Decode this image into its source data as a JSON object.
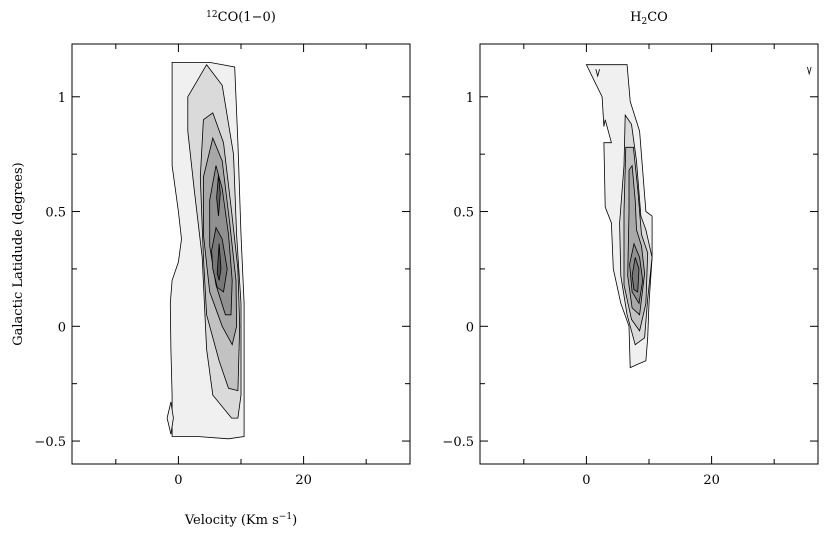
{
  "chart_data": [
    {
      "type": "contour",
      "title": "12CO(1−0)",
      "title_sup": "12",
      "title_main": "CO(1−0)",
      "xlabel_main": "Velocity (Km s",
      "xlabel_sup": "−1",
      "xlabel_close": ")",
      "ylabel": "Galactic Latidude (degrees)",
      "xlim": [
        -17,
        37
      ],
      "ylim": [
        -0.6,
        1.23
      ],
      "xticks": [
        0,
        20
      ],
      "xtick_labels": [
        "0",
        "20"
      ],
      "yticks": [
        -0.5,
        0,
        0.5,
        1
      ],
      "ytick_labels": [
        "−0.5",
        "0",
        "0.5",
        "1"
      ],
      "levels": [
        {
          "fill": "#f0f0f0",
          "points": [
            [
              -1,
              1.15
            ],
            [
              5,
              1.15
            ],
            [
              9,
              1.13
            ],
            [
              9.5,
              0.8
            ],
            [
              10,
              0.4
            ],
            [
              10.5,
              0.1
            ],
            [
              10.5,
              -0.2
            ],
            [
              10.5,
              -0.48
            ],
            [
              8,
              -0.49
            ],
            [
              3,
              -0.48
            ],
            [
              -1,
              -0.48
            ],
            [
              -1,
              -0.3
            ],
            [
              -1.2,
              -0.1
            ],
            [
              -1.3,
              0.1
            ],
            [
              -1,
              0.2
            ],
            [
              0,
              0.28
            ],
            [
              0.5,
              0.38
            ],
            [
              0,
              0.5
            ],
            [
              -1,
              0.7
            ],
            [
              -1,
              1.15
            ]
          ]
        },
        {
          "fill": "#f0f0f0",
          "points": [
            [
              -1.2,
              -0.33
            ],
            [
              -1.8,
              -0.4
            ],
            [
              -1.2,
              -0.47
            ],
            [
              -0.8,
              -0.4
            ]
          ]
        },
        {
          "fill": "#dadada",
          "points": [
            [
              1.5,
              1.0
            ],
            [
              4.5,
              1.14
            ],
            [
              7,
              1.05
            ],
            [
              8.8,
              0.75
            ],
            [
              9.3,
              0.4
            ],
            [
              10,
              0.1
            ],
            [
              10,
              -0.3
            ],
            [
              9.5,
              -0.4
            ],
            [
              8.5,
              -0.4
            ],
            [
              5.5,
              -0.3
            ],
            [
              4.5,
              -0.1
            ],
            [
              3.8,
              0.3
            ],
            [
              2.5,
              0.6
            ],
            [
              1.5,
              0.85
            ]
          ]
        },
        {
          "fill": "#c2c2c2",
          "points": [
            [
              4,
              0.9
            ],
            [
              5.5,
              0.93
            ],
            [
              7.2,
              0.8
            ],
            [
              8.5,
              0.5
            ],
            [
              9.5,
              0.25
            ],
            [
              9.8,
              0
            ],
            [
              9.5,
              -0.28
            ],
            [
              8,
              -0.27
            ],
            [
              6.5,
              -0.15
            ],
            [
              4.5,
              0.05
            ],
            [
              4,
              0.3
            ],
            [
              3.5,
              0.65
            ]
          ]
        },
        {
          "fill": "#a8a8a8",
          "points": [
            [
              4,
              0.65
            ],
            [
              5.5,
              0.82
            ],
            [
              7,
              0.72
            ],
            [
              8.2,
              0.45
            ],
            [
              9.2,
              0.2
            ],
            [
              9.3,
              0
            ],
            [
              8.6,
              -0.08
            ],
            [
              7,
              0
            ],
            [
              5,
              0.15
            ],
            [
              4,
              0.4
            ]
          ]
        },
        {
          "fill": "#909090",
          "points": [
            [
              5,
              0.55
            ],
            [
              6,
              0.7
            ],
            [
              7,
              0.6
            ],
            [
              8,
              0.4
            ],
            [
              8.6,
              0.2
            ],
            [
              8.4,
              0.05
            ],
            [
              7.5,
              0.05
            ],
            [
              6,
              0.18
            ],
            [
              5,
              0.35
            ]
          ]
        },
        {
          "fill": "#787878",
          "points": [
            [
              5.3,
              0.33
            ],
            [
              6,
              0.43
            ],
            [
              7,
              0.38
            ],
            [
              7.8,
              0.25
            ],
            [
              7.2,
              0.15
            ],
            [
              6.2,
              0.17
            ],
            [
              5.5,
              0.25
            ]
          ]
        },
        {
          "fill": "#626262",
          "points": [
            [
              6.1,
              0.56
            ],
            [
              6.4,
              0.66
            ],
            [
              6.7,
              0.58
            ],
            [
              6.4,
              0.48
            ]
          ]
        },
        {
          "fill": "#505050",
          "points": [
            [
              6.2,
              0.23
            ],
            [
              6.5,
              0.36
            ],
            [
              6.8,
              0.25
            ],
            [
              6.5,
              0.2
            ]
          ]
        }
      ]
    },
    {
      "type": "contour",
      "title": "H2CO",
      "title_main": "H",
      "title_sub": "2",
      "title_tail": "CO",
      "xlim": [
        -17,
        37
      ],
      "ylim": [
        -0.6,
        1.23
      ],
      "xticks": [
        0,
        20
      ],
      "xtick_labels": [
        "0",
        "20"
      ],
      "yticks": [
        -0.5,
        0,
        0.5,
        1
      ],
      "ytick_labels": [
        "−0.5",
        "0",
        "0.5",
        "1"
      ],
      "levels": [
        {
          "fill": "#f0f0f0",
          "points": [
            [
              0,
              1.14
            ],
            [
              6.5,
              1.14
            ],
            [
              7,
              0.98
            ],
            [
              8.5,
              0.85
            ],
            [
              9.5,
              0.5
            ],
            [
              10.5,
              0.48
            ],
            [
              10.5,
              0.3
            ],
            [
              10,
              0.1
            ],
            [
              9.8,
              -0.05
            ],
            [
              9.5,
              -0.15
            ],
            [
              7,
              -0.18
            ],
            [
              6.8,
              0
            ],
            [
              5.5,
              0.1
            ],
            [
              4.3,
              0.25
            ],
            [
              4,
              0.45
            ],
            [
              3,
              0.52
            ],
            [
              2.8,
              0.8
            ],
            [
              4,
              0.8
            ],
            [
              3,
              0.9
            ],
            [
              2.8,
              0.87
            ],
            [
              2.5,
              1.0
            ]
          ]
        },
        {
          "fill": "#dadada",
          "points": [
            [
              6.2,
              0.92
            ],
            [
              7.2,
              0.88
            ],
            [
              8,
              0.72
            ],
            [
              8.7,
              0.48
            ],
            [
              9.5,
              0.42
            ],
            [
              10.5,
              0.3
            ],
            [
              9.8,
              0.12
            ],
            [
              9.3,
              -0.05
            ],
            [
              7.8,
              -0.08
            ],
            [
              6.5,
              0.05
            ],
            [
              5.5,
              0.22
            ],
            [
              5.3,
              0.45
            ],
            [
              6,
              0.7
            ]
          ]
        },
        {
          "fill": "#c2c2c2",
          "points": [
            [
              6.3,
              0.78
            ],
            [
              7.5,
              0.78
            ],
            [
              8.2,
              0.6
            ],
            [
              8.8,
              0.4
            ],
            [
              9.8,
              0.32
            ],
            [
              9.5,
              0.1
            ],
            [
              8.5,
              -0.02
            ],
            [
              7.2,
              0.03
            ],
            [
              6,
              0.18
            ],
            [
              6,
              0.5
            ]
          ]
        },
        {
          "fill": "#a8a8a8",
          "points": [
            [
              6.8,
              0.68
            ],
            [
              7.3,
              0.7
            ],
            [
              7.8,
              0.55
            ],
            [
              8,
              0.42
            ],
            [
              8.8,
              0.35
            ],
            [
              9.3,
              0.23
            ],
            [
              8.5,
              0.05
            ],
            [
              7.3,
              0.08
            ],
            [
              6.6,
              0.22
            ],
            [
              6.8,
              0.5
            ]
          ]
        },
        {
          "fill": "#909090",
          "points": [
            [
              6.9,
              0.27
            ],
            [
              7.6,
              0.36
            ],
            [
              8.5,
              0.3
            ],
            [
              9,
              0.2
            ],
            [
              8.4,
              0.1
            ],
            [
              7.3,
              0.15
            ]
          ]
        },
        {
          "fill": "#787878",
          "points": [
            [
              7.3,
              0.22
            ],
            [
              7.8,
              0.3
            ],
            [
              8.4,
              0.25
            ],
            [
              8.2,
              0.15
            ],
            [
              7.6,
              0.16
            ]
          ]
        }
      ],
      "marks": [
        {
          "points": [
            [
              1.5,
              1.12
            ],
            [
              1.8,
              1.09
            ],
            [
              2.1,
              1.12
            ]
          ]
        },
        {
          "points": [
            [
              35.3,
              1.13
            ],
            [
              35.6,
              1.1
            ],
            [
              35.9,
              1.13
            ]
          ]
        }
      ]
    }
  ]
}
